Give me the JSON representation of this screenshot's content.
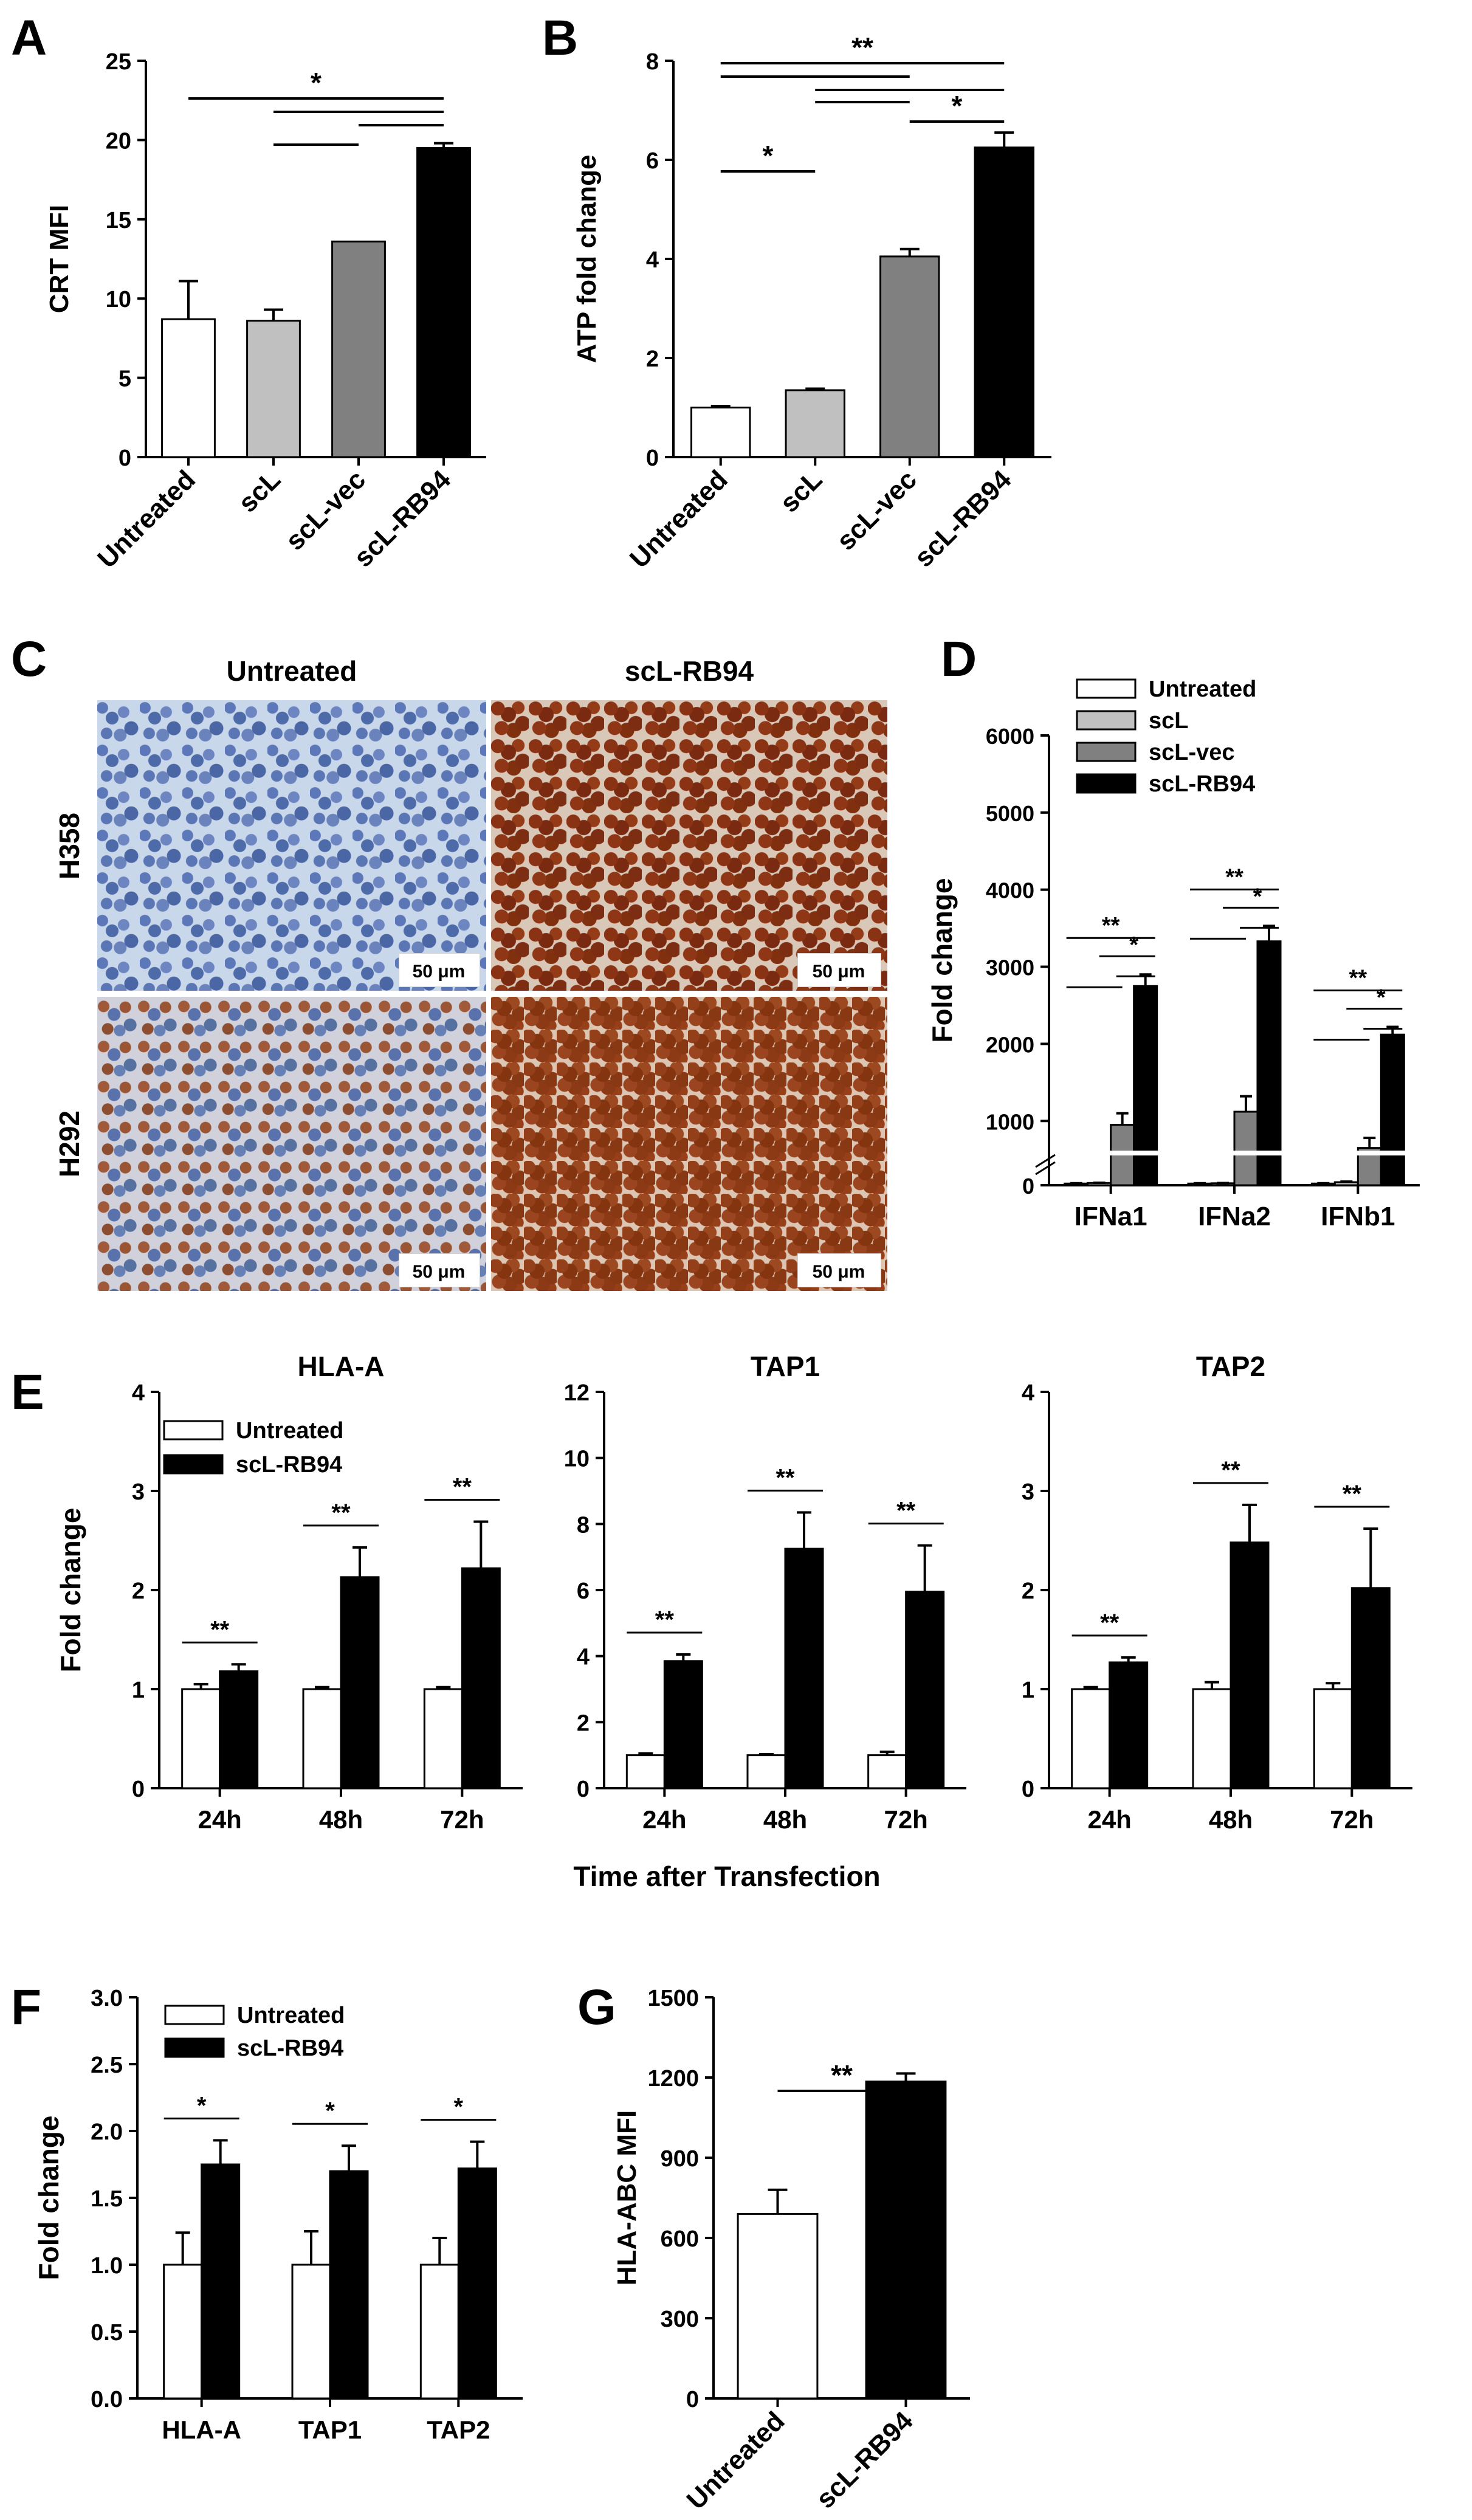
{
  "panel_letters": [
    "A",
    "B",
    "C",
    "D",
    "E",
    "F",
    "G"
  ],
  "panel_c": {
    "col_labels": [
      "Untreated",
      "scL-RB94"
    ],
    "row_labels": [
      "H358",
      "H292"
    ],
    "scale_bar": "50 μm"
  },
  "e_shared_xlabel": "Time after Transfection",
  "colors": {
    "untreated": "#ffffff",
    "scL": "#c0c0c0",
    "scL_vec": "#808080",
    "scL_RB94": "#000000",
    "break_mark": "#ffffff"
  },
  "chart_data": [
    {
      "id": "A",
      "type": "bar",
      "categories": [
        "Untreated",
        "scL",
        "scL-vec",
        "scL-RB94"
      ],
      "values": [
        8.7,
        8.6,
        13.6,
        19.5
      ],
      "errors": [
        2.4,
        0.7,
        0,
        0.3
      ],
      "bar_colors": [
        "#ffffff",
        "#c0c0c0",
        "#808080",
        "#000000"
      ],
      "ylabel": "CRT MFI",
      "ylim": [
        0,
        25
      ],
      "yticks": [
        0,
        5,
        10,
        15,
        20,
        25
      ],
      "significance": [
        {
          "from": 0,
          "to": 3,
          "label": "*"
        },
        {
          "from": 1,
          "to": 3,
          "label": ""
        },
        {
          "from": 2,
          "to": 3,
          "label": ""
        },
        {
          "from": 1,
          "to": 2,
          "label": ""
        }
      ]
    },
    {
      "id": "B",
      "type": "bar",
      "categories": [
        "Untreated",
        "scL",
        "scL-vec",
        "scL-RB94"
      ],
      "values": [
        1.0,
        1.35,
        4.05,
        6.25
      ],
      "errors": [
        0.03,
        0.03,
        0.15,
        0.3
      ],
      "bar_colors": [
        "#ffffff",
        "#c0c0c0",
        "#808080",
        "#000000"
      ],
      "ylabel": "ATP fold change",
      "ylim": [
        0,
        8
      ],
      "yticks": [
        0,
        2,
        4,
        6,
        8
      ],
      "significance": [
        {
          "from": 0,
          "to": 3,
          "label": "**"
        },
        {
          "from": 0,
          "to": 2,
          "label": ""
        },
        {
          "from": 1,
          "to": 3,
          "label": ""
        },
        {
          "from": 1,
          "to": 2,
          "label": ""
        },
        {
          "from": 2,
          "to": 3,
          "label": "*"
        },
        {
          "from": 0,
          "to": 1,
          "label": "*"
        }
      ]
    },
    {
      "id": "D",
      "type": "bar",
      "categories": [
        "IFNa1",
        "IFNa2",
        "IFNb1"
      ],
      "series": [
        {
          "name": "Untreated",
          "values": [
            30,
            30,
            30
          ],
          "errors": [
            5,
            5,
            5
          ],
          "color": "#ffffff"
        },
        {
          "name": "scL",
          "values": [
            40,
            35,
            55
          ],
          "errors": [
            5,
            5,
            10
          ],
          "color": "#c0c0c0"
        },
        {
          "name": "scL-vec",
          "values": [
            950,
            1120,
            650
          ],
          "errors": [
            150,
            200,
            130
          ],
          "color": "#808080"
        },
        {
          "name": "scL-RB94",
          "values": [
            2750,
            3330,
            2120
          ],
          "errors": [
            150,
            200,
            100
          ],
          "color": "#000000"
        }
      ],
      "ylabel": "Fold change",
      "ylim": [
        0,
        6000
      ],
      "yticks": [
        0,
        1000,
        2000,
        3000,
        4000,
        5000,
        6000
      ],
      "axis_break": 600,
      "legend_position": "top-left",
      "significance_labels": [
        "**",
        "*"
      ]
    },
    {
      "id": "E1",
      "type": "bar",
      "title": "HLA-A",
      "categories": [
        "24h",
        "48h",
        "72h"
      ],
      "series": [
        {
          "name": "Untreated",
          "values": [
            1.0,
            1.0,
            1.0
          ],
          "errors": [
            0.05,
            0.02,
            0.02
          ],
          "color": "#ffffff"
        },
        {
          "name": "scL-RB94",
          "values": [
            1.18,
            2.13,
            2.22
          ],
          "errors": [
            0.07,
            0.3,
            0.47
          ],
          "color": "#000000"
        }
      ],
      "ylabel": "Fold change",
      "ylim": [
        0,
        4
      ],
      "yticks": [
        0,
        1,
        2,
        3,
        4
      ],
      "legend_position": "top-left",
      "significance": [
        "**",
        "**",
        "**"
      ]
    },
    {
      "id": "E2",
      "type": "bar",
      "title": "TAP1",
      "categories": [
        "24h",
        "48h",
        "72h"
      ],
      "series": [
        {
          "name": "Untreated",
          "values": [
            1.0,
            1.0,
            1.0
          ],
          "errors": [
            0.05,
            0.03,
            0.1
          ],
          "color": "#ffffff"
        },
        {
          "name": "scL-RB94",
          "values": [
            3.85,
            7.25,
            5.95
          ],
          "errors": [
            0.2,
            1.1,
            1.4
          ],
          "color": "#000000"
        }
      ],
      "ylim": [
        0,
        12
      ],
      "yticks": [
        0,
        2,
        4,
        6,
        8,
        10,
        12
      ],
      "significance": [
        "**",
        "**",
        "**"
      ]
    },
    {
      "id": "E3",
      "type": "bar",
      "title": "TAP2",
      "categories": [
        "24h",
        "48h",
        "72h"
      ],
      "series": [
        {
          "name": "Untreated",
          "values": [
            1.0,
            1.0,
            1.0
          ],
          "errors": [
            0.02,
            0.07,
            0.06
          ],
          "color": "#ffffff"
        },
        {
          "name": "scL-RB94",
          "values": [
            1.27,
            2.48,
            2.02
          ],
          "errors": [
            0.05,
            0.38,
            0.6
          ],
          "color": "#000000"
        }
      ],
      "ylim": [
        0,
        4
      ],
      "yticks": [
        0,
        1,
        2,
        3,
        4
      ],
      "significance": [
        "**",
        "**",
        "**"
      ]
    },
    {
      "id": "F",
      "type": "bar",
      "categories": [
        "HLA-A",
        "TAP1",
        "TAP2"
      ],
      "series": [
        {
          "name": "Untreated",
          "values": [
            1.0,
            1.0,
            1.0
          ],
          "errors": [
            0.24,
            0.25,
            0.2
          ],
          "color": "#ffffff"
        },
        {
          "name": "scL-RB94",
          "values": [
            1.75,
            1.7,
            1.72
          ],
          "errors": [
            0.18,
            0.19,
            0.2
          ],
          "color": "#000000"
        }
      ],
      "ylabel": "Fold change",
      "ylim": [
        0,
        3.0
      ],
      "yticks": [
        "0.0",
        "0.5",
        "1.0",
        "1.5",
        "2.0",
        "2.5",
        "3.0"
      ],
      "legend_position": "top-left",
      "significance": [
        "*",
        "*",
        "*"
      ]
    },
    {
      "id": "G",
      "type": "bar",
      "categories": [
        "Untreated",
        "scL-RB94"
      ],
      "values": [
        690,
        1185
      ],
      "errors": [
        90,
        30
      ],
      "bar_colors": [
        "#ffffff",
        "#000000"
      ],
      "ylabel": "HLA-ABC MFI",
      "ylim": [
        0,
        1500
      ],
      "yticks": [
        0,
        300,
        600,
        900,
        1200,
        1500
      ],
      "significance": [
        {
          "from": 0,
          "to": 1,
          "label": "**"
        }
      ]
    }
  ]
}
